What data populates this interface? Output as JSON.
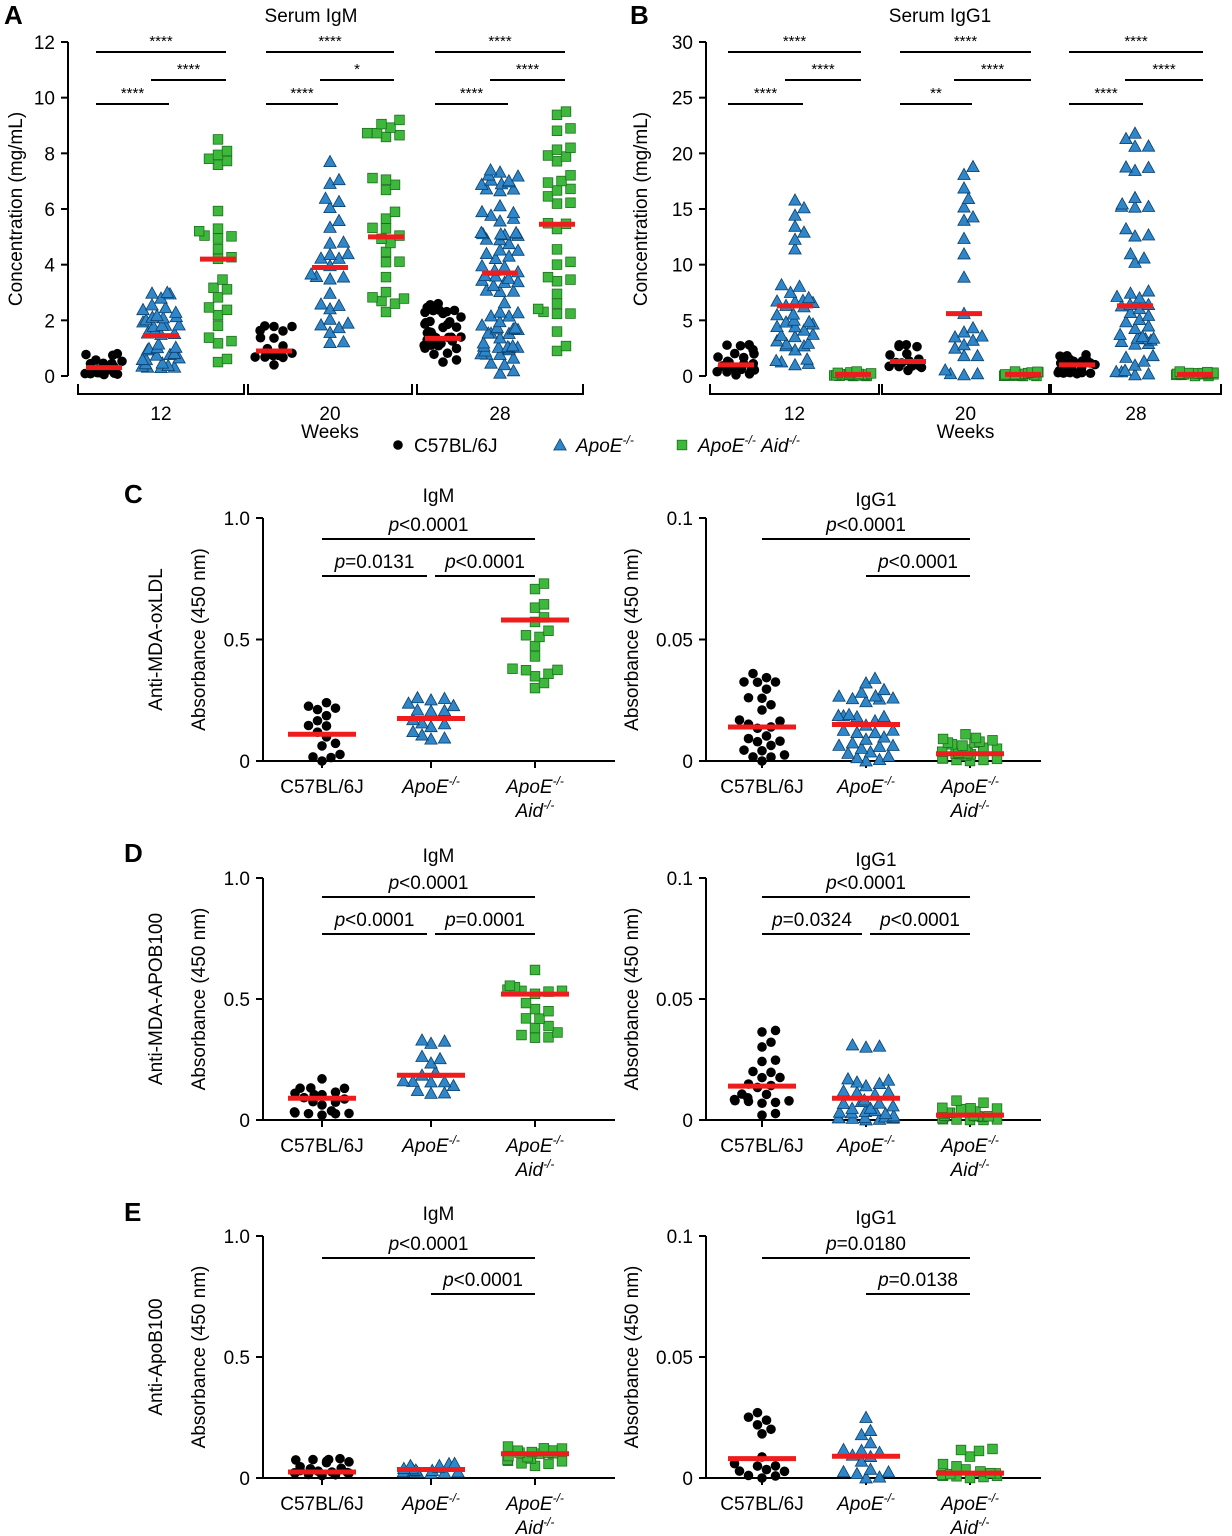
{
  "legend": {
    "items": [
      {
        "label": "C57BL/6J",
        "marker": "circle",
        "color": "#000000"
      },
      {
        "label": "ApoE",
        "sup": "-/-",
        "marker": "triangle",
        "color": "#2f86c8"
      },
      {
        "label": "ApoE",
        "sup": "-/-",
        "label2": "Aid",
        "sup2": "-/-",
        "marker": "square",
        "color": "#3db83d"
      }
    ]
  },
  "colors": {
    "wt": "#000000",
    "apoe": "#2f86c8",
    "dko": "#3db83d",
    "median": "#ee1c1c"
  },
  "groups": {
    "wt": {
      "label": "C57BL/6J"
    },
    "apoe": {
      "label": "ApoE",
      "sup": "-/-"
    },
    "dko": {
      "label": "ApoE",
      "sup": "-/-",
      "label2": "Aid",
      "sup2": "-/-"
    }
  },
  "chart_data": [
    {
      "id": "A",
      "panel_label": "A",
      "title": "Serum IgM",
      "type": "scatter",
      "ylabel": "Concentration (mg/mL)",
      "xlabel": "Weeks",
      "ylim": [
        0,
        12
      ],
      "yticks": [
        "0",
        "2",
        "4",
        "6",
        "8",
        "10",
        "12"
      ],
      "ytick_values": [
        0,
        2,
        4,
        6,
        8,
        10,
        12
      ],
      "categories": [
        "12",
        "20",
        "28"
      ],
      "series": [
        {
          "name": "C57BL/6J",
          "group": "wt",
          "medians": [
            0.3,
            0.9,
            1.35
          ],
          "ranges": [
            [
              0.05,
              0.8
            ],
            [
              0.4,
              1.8
            ],
            [
              0.5,
              2.6
            ]
          ],
          "n": [
            22,
            18,
            40
          ]
        },
        {
          "name": "ApoE-/-",
          "group": "apoe",
          "medians": [
            1.45,
            3.9,
            3.7
          ],
          "ranges": [
            [
              0.3,
              3.0
            ],
            [
              1.2,
              7.7
            ],
            [
              0.1,
              7.4
            ]
          ],
          "n": [
            40,
            30,
            80
          ]
        },
        {
          "name": "ApoE-/- Aid-/-",
          "group": "dko",
          "medians": [
            4.2,
            5.0,
            5.45
          ],
          "ranges": [
            [
              0.5,
              8.5
            ],
            [
              2.3,
              9.2
            ],
            [
              0.9,
              9.5
            ]
          ],
          "n": [
            28,
            28,
            35
          ]
        }
      ],
      "brackets": [
        {
          "week": 0,
          "from": 0,
          "to": 2,
          "level": 0,
          "text": "****"
        },
        {
          "week": 0,
          "from": 1,
          "to": 2,
          "level": 1,
          "text": "****"
        },
        {
          "week": 0,
          "from": 0,
          "to": 1,
          "level": 2,
          "text": "****"
        },
        {
          "week": 1,
          "from": 0,
          "to": 2,
          "level": 0,
          "text": "****"
        },
        {
          "week": 1,
          "from": 1,
          "to": 2,
          "level": 1,
          "text": "*"
        },
        {
          "week": 1,
          "from": 0,
          "to": 1,
          "level": 2,
          "text": "****"
        },
        {
          "week": 2,
          "from": 0,
          "to": 2,
          "level": 0,
          "text": "****"
        },
        {
          "week": 2,
          "from": 1,
          "to": 2,
          "level": 1,
          "text": "****"
        },
        {
          "week": 2,
          "from": 0,
          "to": 1,
          "level": 2,
          "text": "****"
        }
      ]
    },
    {
      "id": "B",
      "panel_label": "B",
      "title": "Serum IgG1",
      "type": "scatter",
      "ylabel": "Concentration (mg/mL)",
      "xlabel": "Weeks",
      "ylim": [
        0,
        30
      ],
      "yticks": [
        "0",
        "5",
        "10",
        "15",
        "20",
        "25",
        "30"
      ],
      "ytick_values": [
        0,
        5,
        10,
        15,
        20,
        25,
        30
      ],
      "categories": [
        "12",
        "20",
        "28"
      ],
      "series": [
        {
          "name": "C57BL/6J",
          "group": "wt",
          "medians": [
            1.0,
            1.3,
            1.0
          ],
          "ranges": [
            [
              0.1,
              2.8
            ],
            [
              0.5,
              2.8
            ],
            [
              0.2,
              1.9
            ]
          ],
          "n": [
            22,
            18,
            30
          ]
        },
        {
          "name": "ApoE-/-",
          "group": "apoe",
          "medians": [
            6.3,
            5.6,
            6.3
          ],
          "ranges": [
            [
              1.0,
              15.8
            ],
            [
              0.1,
              18.8
            ],
            [
              0.1,
              21.8
            ]
          ],
          "n": [
            40,
            24,
            50
          ]
        },
        {
          "name": "ApoE-/- Aid-/-",
          "group": "dko",
          "medians": [
            0.15,
            0.15,
            0.15
          ],
          "ranges": [
            [
              0.0,
              0.4
            ],
            [
              0.0,
              0.4
            ],
            [
              0.0,
              0.4
            ]
          ],
          "n": [
            18,
            18,
            20
          ]
        }
      ],
      "brackets": [
        {
          "week": 0,
          "from": 0,
          "to": 2,
          "level": 0,
          "text": "****"
        },
        {
          "week": 0,
          "from": 1,
          "to": 2,
          "level": 1,
          "text": "****"
        },
        {
          "week": 0,
          "from": 0,
          "to": 1,
          "level": 2,
          "text": "****"
        },
        {
          "week": 1,
          "from": 0,
          "to": 2,
          "level": 0,
          "text": "****"
        },
        {
          "week": 1,
          "from": 1,
          "to": 2,
          "level": 1,
          "text": "****"
        },
        {
          "week": 1,
          "from": 0,
          "to": 1,
          "level": 2,
          "text": "**"
        },
        {
          "week": 2,
          "from": 0,
          "to": 2,
          "level": 0,
          "text": "****"
        },
        {
          "week": 2,
          "from": 1,
          "to": 2,
          "level": 1,
          "text": "****"
        },
        {
          "week": 2,
          "from": 0,
          "to": 1,
          "level": 2,
          "text": "****"
        }
      ]
    },
    {
      "id": "C-IgM",
      "panel_label": "C",
      "row_label": "Anti-MDA-oxLDL",
      "title": "IgM",
      "type": "scatter",
      "ylabel": "Absorbance (450 nm)",
      "ylim": [
        0,
        1.0
      ],
      "yticks": [
        "0",
        "0.5",
        "1.0"
      ],
      "ytick_values": [
        0,
        0.5,
        1.0
      ],
      "series": [
        {
          "group": "wt",
          "median": 0.11,
          "range": [
            0.0,
            0.24
          ],
          "n": 16
        },
        {
          "group": "apoe",
          "median": 0.175,
          "range": [
            0.09,
            0.26
          ],
          "n": 16
        },
        {
          "group": "dko",
          "median": 0.58,
          "range": [
            0.3,
            0.73
          ],
          "n": 18
        }
      ],
      "brackets": [
        {
          "from": 0,
          "to": 2,
          "level": 0,
          "p": "<0.0001"
        },
        {
          "from": 0,
          "to": 1,
          "level": 1,
          "p": "=0.0131"
        },
        {
          "from": 1,
          "to": 2,
          "level": 1,
          "p": "<0.0001"
        }
      ]
    },
    {
      "id": "C-IgG1",
      "panel_label": "",
      "title": "IgG1",
      "type": "scatter",
      "ylabel": "Absorbance (450 nm)",
      "ylim": [
        0,
        0.1
      ],
      "yticks": [
        "0",
        "0.05",
        "0.1"
      ],
      "ytick_values": [
        0,
        0.05,
        0.1
      ],
      "series": [
        {
          "group": "wt",
          "median": 0.014,
          "range": [
            0.0,
            0.036
          ],
          "n": 26
        },
        {
          "group": "apoe",
          "median": 0.015,
          "range": [
            0.0,
            0.034
          ],
          "n": 34
        },
        {
          "group": "dko",
          "median": 0.003,
          "range": [
            0.0,
            0.011
          ],
          "n": 26
        }
      ],
      "brackets": [
        {
          "from": 0,
          "to": 2,
          "level": 0,
          "p": "<0.0001"
        },
        {
          "from": 1,
          "to": 2,
          "level": 1,
          "p": "<0.0001"
        }
      ]
    },
    {
      "id": "D-IgM",
      "panel_label": "D",
      "row_label": "Anti-MDA-APOB100",
      "title": "IgM",
      "type": "scatter",
      "ylabel": "Absorbance (450 nm)",
      "ylim": [
        0,
        1.0
      ],
      "yticks": [
        "0",
        "0.5",
        "1.0"
      ],
      "ytick_values": [
        0,
        0.5,
        1.0
      ],
      "series": [
        {
          "group": "wt",
          "median": 0.09,
          "range": [
            0.02,
            0.17
          ],
          "n": 20
        },
        {
          "group": "apoe",
          "median": 0.185,
          "range": [
            0.11,
            0.33
          ],
          "n": 16
        },
        {
          "group": "dko",
          "median": 0.52,
          "range": [
            0.34,
            0.62
          ],
          "n": 20
        }
      ],
      "brackets": [
        {
          "from": 0,
          "to": 2,
          "level": 0,
          "p": "<0.0001"
        },
        {
          "from": 0,
          "to": 1,
          "level": 1,
          "p": "<0.0001"
        },
        {
          "from": 1,
          "to": 2,
          "level": 1,
          "p": "=0.0001"
        }
      ]
    },
    {
      "id": "D-IgG1",
      "panel_label": "",
      "title": "IgG1",
      "type": "scatter",
      "ylabel": "Absorbance (450 nm)",
      "ylim": [
        0,
        0.1
      ],
      "yticks": [
        "0",
        "0.05",
        "0.1"
      ],
      "ytick_values": [
        0,
        0.05,
        0.1
      ],
      "series": [
        {
          "group": "wt",
          "median": 0.014,
          "range": [
            0.002,
            0.037
          ],
          "n": 24
        },
        {
          "group": "apoe",
          "median": 0.009,
          "range": [
            0.0,
            0.031
          ],
          "n": 34
        },
        {
          "group": "dko",
          "median": 0.002,
          "range": [
            0.0,
            0.008
          ],
          "n": 24
        }
      ],
      "brackets": [
        {
          "from": 0,
          "to": 2,
          "level": 0,
          "p": "<0.0001"
        },
        {
          "from": 0,
          "to": 1,
          "level": 1,
          "p": "=0.0324"
        },
        {
          "from": 1,
          "to": 2,
          "level": 1,
          "p": "<0.0001"
        }
      ]
    },
    {
      "id": "E-IgM",
      "panel_label": "E",
      "row_label": "Anti-ApoB100",
      "title": "IgM",
      "type": "scatter",
      "ylabel": "Absorbance (450 nm)",
      "ylim": [
        0,
        1.0
      ],
      "yticks": [
        "0",
        "0.5",
        "1.0"
      ],
      "ytick_values": [
        0,
        0.5,
        1.0
      ],
      "series": [
        {
          "group": "wt",
          "median": 0.025,
          "range": [
            0.01,
            0.08
          ],
          "n": 20
        },
        {
          "group": "apoe",
          "median": 0.035,
          "range": [
            0.02,
            0.06
          ],
          "n": 16
        },
        {
          "group": "dko",
          "median": 0.1,
          "range": [
            0.05,
            0.13
          ],
          "n": 20
        }
      ],
      "brackets": [
        {
          "from": 0,
          "to": 2,
          "level": 0,
          "p": "<0.0001"
        },
        {
          "from": 1,
          "to": 2,
          "level": 1,
          "p": "<0.0001"
        }
      ]
    },
    {
      "id": "E-IgG1",
      "panel_label": "",
      "title": "IgG1",
      "type": "scatter",
      "ylabel": "Absorbance (450 nm)",
      "ylim": [
        0,
        0.1
      ],
      "yticks": [
        "0",
        "0.05",
        "0.1"
      ],
      "ytick_values": [
        0,
        0.05,
        0.1
      ],
      "series": [
        {
          "group": "wt",
          "median": 0.008,
          "range": [
            0.0,
            0.027
          ],
          "n": 16
        },
        {
          "group": "apoe",
          "median": 0.009,
          "range": [
            0.0,
            0.025
          ],
          "n": 16
        },
        {
          "group": "dko",
          "median": 0.002,
          "range": [
            0.0,
            0.012
          ],
          "n": 18
        }
      ],
      "brackets": [
        {
          "from": 0,
          "to": 2,
          "level": 0,
          "p": "=0.0180"
        },
        {
          "from": 1,
          "to": 2,
          "level": 1,
          "p": "=0.0138"
        }
      ]
    }
  ]
}
